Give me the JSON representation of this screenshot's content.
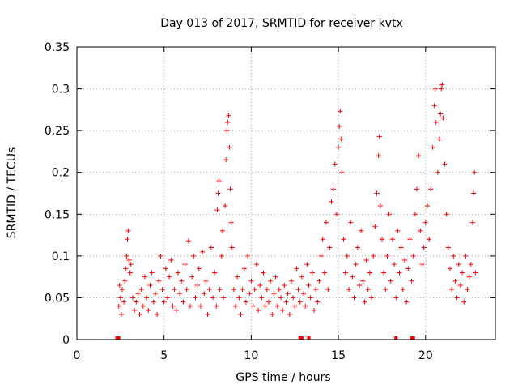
{
  "chart_data": {
    "type": "scatter",
    "title": "Day 013 of 2017, SRMTID for receiver kvtx",
    "xlabel": "GPS time / hours",
    "ylabel": "SRMTID / TECUs",
    "xlim": [
      0,
      24
    ],
    "ylim": [
      0,
      0.35
    ],
    "x_ticks": [
      "0",
      "5",
      "10",
      "15",
      "20"
    ],
    "y_ticks": [
      "0",
      "0.05",
      "0.1",
      "0.15",
      "0.2",
      "0.25",
      "0.3",
      "0.35"
    ],
    "grid": true,
    "marker": "+",
    "color": "#ff0000",
    "series": [
      {
        "name": "SRMTID",
        "points": [
          [
            2.4,
            0.04
          ],
          [
            2.45,
            0.065
          ],
          [
            2.5,
            0.05
          ],
          [
            2.55,
            0.03
          ],
          [
            2.6,
            0.06
          ],
          [
            2.7,
            0.045
          ],
          [
            2.75,
            0.07
          ],
          [
            2.8,
            0.085
          ],
          [
            2.85,
            0.1
          ],
          [
            2.9,
            0.12
          ],
          [
            2.95,
            0.13
          ],
          [
            3.0,
            0.095
          ],
          [
            3.05,
            0.08
          ],
          [
            3.1,
            0.09
          ],
          [
            3.2,
            0.05
          ],
          [
            3.3,
            0.035
          ],
          [
            3.4,
            0.045
          ],
          [
            3.5,
            0.055
          ],
          [
            3.6,
            0.03
          ],
          [
            3.7,
            0.06
          ],
          [
            3.8,
            0.04
          ],
          [
            3.9,
            0.075
          ],
          [
            4.0,
            0.05
          ],
          [
            4.1,
            0.035
          ],
          [
            4.2,
            0.065
          ],
          [
            4.3,
            0.08
          ],
          [
            4.4,
            0.045
          ],
          [
            4.5,
            0.055
          ],
          [
            4.6,
            0.03
          ],
          [
            4.7,
            0.07
          ],
          [
            4.8,
            0.1
          ],
          [
            4.9,
            0.06
          ],
          [
            5.0,
            0.045
          ],
          [
            5.1,
            0.085
          ],
          [
            5.2,
            0.05
          ],
          [
            5.3,
            0.075
          ],
          [
            5.4,
            0.095
          ],
          [
            5.5,
            0.04
          ],
          [
            5.6,
            0.06
          ],
          [
            5.7,
            0.035
          ],
          [
            5.8,
            0.08
          ],
          [
            5.9,
            0.055
          ],
          [
            6.0,
            0.07
          ],
          [
            6.1,
            0.045
          ],
          [
            6.2,
            0.09
          ],
          [
            6.3,
            0.06
          ],
          [
            6.4,
            0.118
          ],
          [
            6.5,
            0.04
          ],
          [
            6.6,
            0.075
          ],
          [
            6.7,
            0.1
          ],
          [
            6.8,
            0.05
          ],
          [
            6.9,
            0.065
          ],
          [
            7.0,
            0.085
          ],
          [
            7.1,
            0.04
          ],
          [
            7.2,
            0.105
          ],
          [
            7.3,
            0.055
          ],
          [
            7.4,
            0.07
          ],
          [
            7.5,
            0.03
          ],
          [
            7.6,
            0.06
          ],
          [
            7.7,
            0.11
          ],
          [
            7.8,
            0.05
          ],
          [
            7.9,
            0.08
          ],
          [
            8.0,
            0.04
          ],
          [
            8.05,
            0.155
          ],
          [
            8.1,
            0.175
          ],
          [
            8.15,
            0.19
          ],
          [
            8.2,
            0.06
          ],
          [
            8.3,
            0.1
          ],
          [
            8.35,
            0.13
          ],
          [
            8.4,
            0.05
          ],
          [
            8.5,
            0.16
          ],
          [
            8.55,
            0.215
          ],
          [
            8.6,
            0.25
          ],
          [
            8.65,
            0.26
          ],
          [
            8.7,
            0.268
          ],
          [
            8.75,
            0.23
          ],
          [
            8.8,
            0.18
          ],
          [
            8.85,
            0.14
          ],
          [
            8.9,
            0.11
          ],
          [
            9.0,
            0.06
          ],
          [
            9.1,
            0.04
          ],
          [
            9.2,
            0.075
          ],
          [
            9.3,
            0.05
          ],
          [
            9.4,
            0.03
          ],
          [
            9.5,
            0.06
          ],
          [
            9.6,
            0.085
          ],
          [
            9.7,
            0.045
          ],
          [
            9.8,
            0.1
          ],
          [
            9.9,
            0.055
          ],
          [
            10.0,
            0.07
          ],
          [
            10.1,
            0.04
          ],
          [
            10.2,
            0.06
          ],
          [
            10.3,
            0.09
          ],
          [
            10.4,
            0.035
          ],
          [
            10.5,
            0.065
          ],
          [
            10.6,
            0.05
          ],
          [
            10.7,
            0.08
          ],
          [
            10.8,
            0.04
          ],
          [
            10.9,
            0.06
          ],
          [
            11.0,
            0.045
          ],
          [
            11.1,
            0.07
          ],
          [
            11.2,
            0.03
          ],
          [
            11.3,
            0.055
          ],
          [
            11.4,
            0.075
          ],
          [
            11.5,
            0.04
          ],
          [
            11.6,
            0.06
          ],
          [
            11.7,
            0.05
          ],
          [
            11.8,
            0.035
          ],
          [
            11.9,
            0.065
          ],
          [
            12.0,
            0.045
          ],
          [
            12.1,
            0.055
          ],
          [
            12.2,
            0.03
          ],
          [
            12.3,
            0.07
          ],
          [
            12.4,
            0.05
          ],
          [
            12.5,
            0.04
          ],
          [
            12.6,
            0.085
          ],
          [
            12.7,
            0.06
          ],
          [
            12.8,
            0.045
          ],
          [
            12.9,
            0.075
          ],
          [
            13.0,
            0.055
          ],
          [
            13.1,
            0.04
          ],
          [
            13.2,
            0.09
          ],
          [
            13.3,
            0.065
          ],
          [
            13.4,
            0.05
          ],
          [
            13.5,
            0.08
          ],
          [
            13.6,
            0.035
          ],
          [
            13.7,
            0.06
          ],
          [
            13.8,
            0.045
          ],
          [
            13.9,
            0.07
          ],
          [
            14.0,
            0.1
          ],
          [
            14.1,
            0.12
          ],
          [
            14.2,
            0.08
          ],
          [
            14.3,
            0.14
          ],
          [
            14.4,
            0.06
          ],
          [
            14.5,
            0.11
          ],
          [
            14.6,
            0.165
          ],
          [
            14.7,
            0.18
          ],
          [
            14.8,
            0.21
          ],
          [
            14.9,
            0.15
          ],
          [
            15.0,
            0.23
          ],
          [
            15.05,
            0.255
          ],
          [
            15.1,
            0.273
          ],
          [
            15.15,
            0.24
          ],
          [
            15.2,
            0.2
          ],
          [
            15.3,
            0.12
          ],
          [
            15.4,
            0.08
          ],
          [
            15.5,
            0.1
          ],
          [
            15.6,
            0.06
          ],
          [
            15.7,
            0.14
          ],
          [
            15.8,
            0.075
          ],
          [
            15.9,
            0.05
          ],
          [
            16.0,
            0.09
          ],
          [
            16.1,
            0.11
          ],
          [
            16.2,
            0.065
          ],
          [
            16.3,
            0.13
          ],
          [
            16.4,
            0.07
          ],
          [
            16.5,
            0.045
          ],
          [
            16.6,
            0.095
          ],
          [
            16.7,
            0.06
          ],
          [
            16.8,
            0.08
          ],
          [
            16.9,
            0.05
          ],
          [
            17.0,
            0.1
          ],
          [
            17.1,
            0.135
          ],
          [
            17.2,
            0.175
          ],
          [
            17.3,
            0.22
          ],
          [
            17.35,
            0.243
          ],
          [
            17.4,
            0.16
          ],
          [
            17.5,
            0.12
          ],
          [
            17.6,
            0.08
          ],
          [
            17.7,
            0.06
          ],
          [
            17.8,
            0.1
          ],
          [
            17.9,
            0.15
          ],
          [
            18.0,
            0.07
          ],
          [
            18.1,
            0.12
          ],
          [
            18.2,
            0.09
          ],
          [
            18.3,
            0.05
          ],
          [
            18.4,
            0.13
          ],
          [
            18.5,
            0.08
          ],
          [
            18.6,
            0.11
          ],
          [
            18.7,
            0.06
          ],
          [
            18.8,
            0.095
          ],
          [
            18.9,
            0.045
          ],
          [
            19.0,
            0.085
          ],
          [
            19.1,
            0.12
          ],
          [
            19.2,
            0.07
          ],
          [
            19.3,
            0.1
          ],
          [
            19.4,
            0.15
          ],
          [
            19.5,
            0.18
          ],
          [
            19.6,
            0.22
          ],
          [
            19.7,
            0.13
          ],
          [
            19.8,
            0.09
          ],
          [
            19.9,
            0.11
          ],
          [
            20.0,
            0.14
          ],
          [
            20.1,
            0.16
          ],
          [
            20.2,
            0.12
          ],
          [
            20.3,
            0.18
          ],
          [
            20.4,
            0.23
          ],
          [
            20.5,
            0.28
          ],
          [
            20.55,
            0.3
          ],
          [
            20.6,
            0.26
          ],
          [
            20.7,
            0.2
          ],
          [
            20.8,
            0.24
          ],
          [
            20.85,
            0.27
          ],
          [
            20.9,
            0.3
          ],
          [
            20.95,
            0.305
          ],
          [
            21.0,
            0.265
          ],
          [
            21.1,
            0.21
          ],
          [
            21.2,
            0.15
          ],
          [
            21.3,
            0.11
          ],
          [
            21.4,
            0.085
          ],
          [
            21.5,
            0.06
          ],
          [
            21.6,
            0.1
          ],
          [
            21.7,
            0.07
          ],
          [
            21.8,
            0.05
          ],
          [
            21.9,
            0.09
          ],
          [
            22.0,
            0.065
          ],
          [
            22.1,
            0.08
          ],
          [
            22.2,
            0.045
          ],
          [
            22.3,
            0.1
          ],
          [
            22.4,
            0.06
          ],
          [
            22.5,
            0.075
          ],
          [
            22.6,
            0.09
          ],
          [
            22.7,
            0.14
          ],
          [
            22.75,
            0.175
          ],
          [
            22.8,
            0.2
          ],
          [
            22.85,
            0.08
          ]
        ]
      }
    ],
    "gap_markers_x": [
      2.3,
      2.4,
      12.8,
      12.9,
      13.3,
      18.3,
      19.2,
      19.3
    ]
  }
}
